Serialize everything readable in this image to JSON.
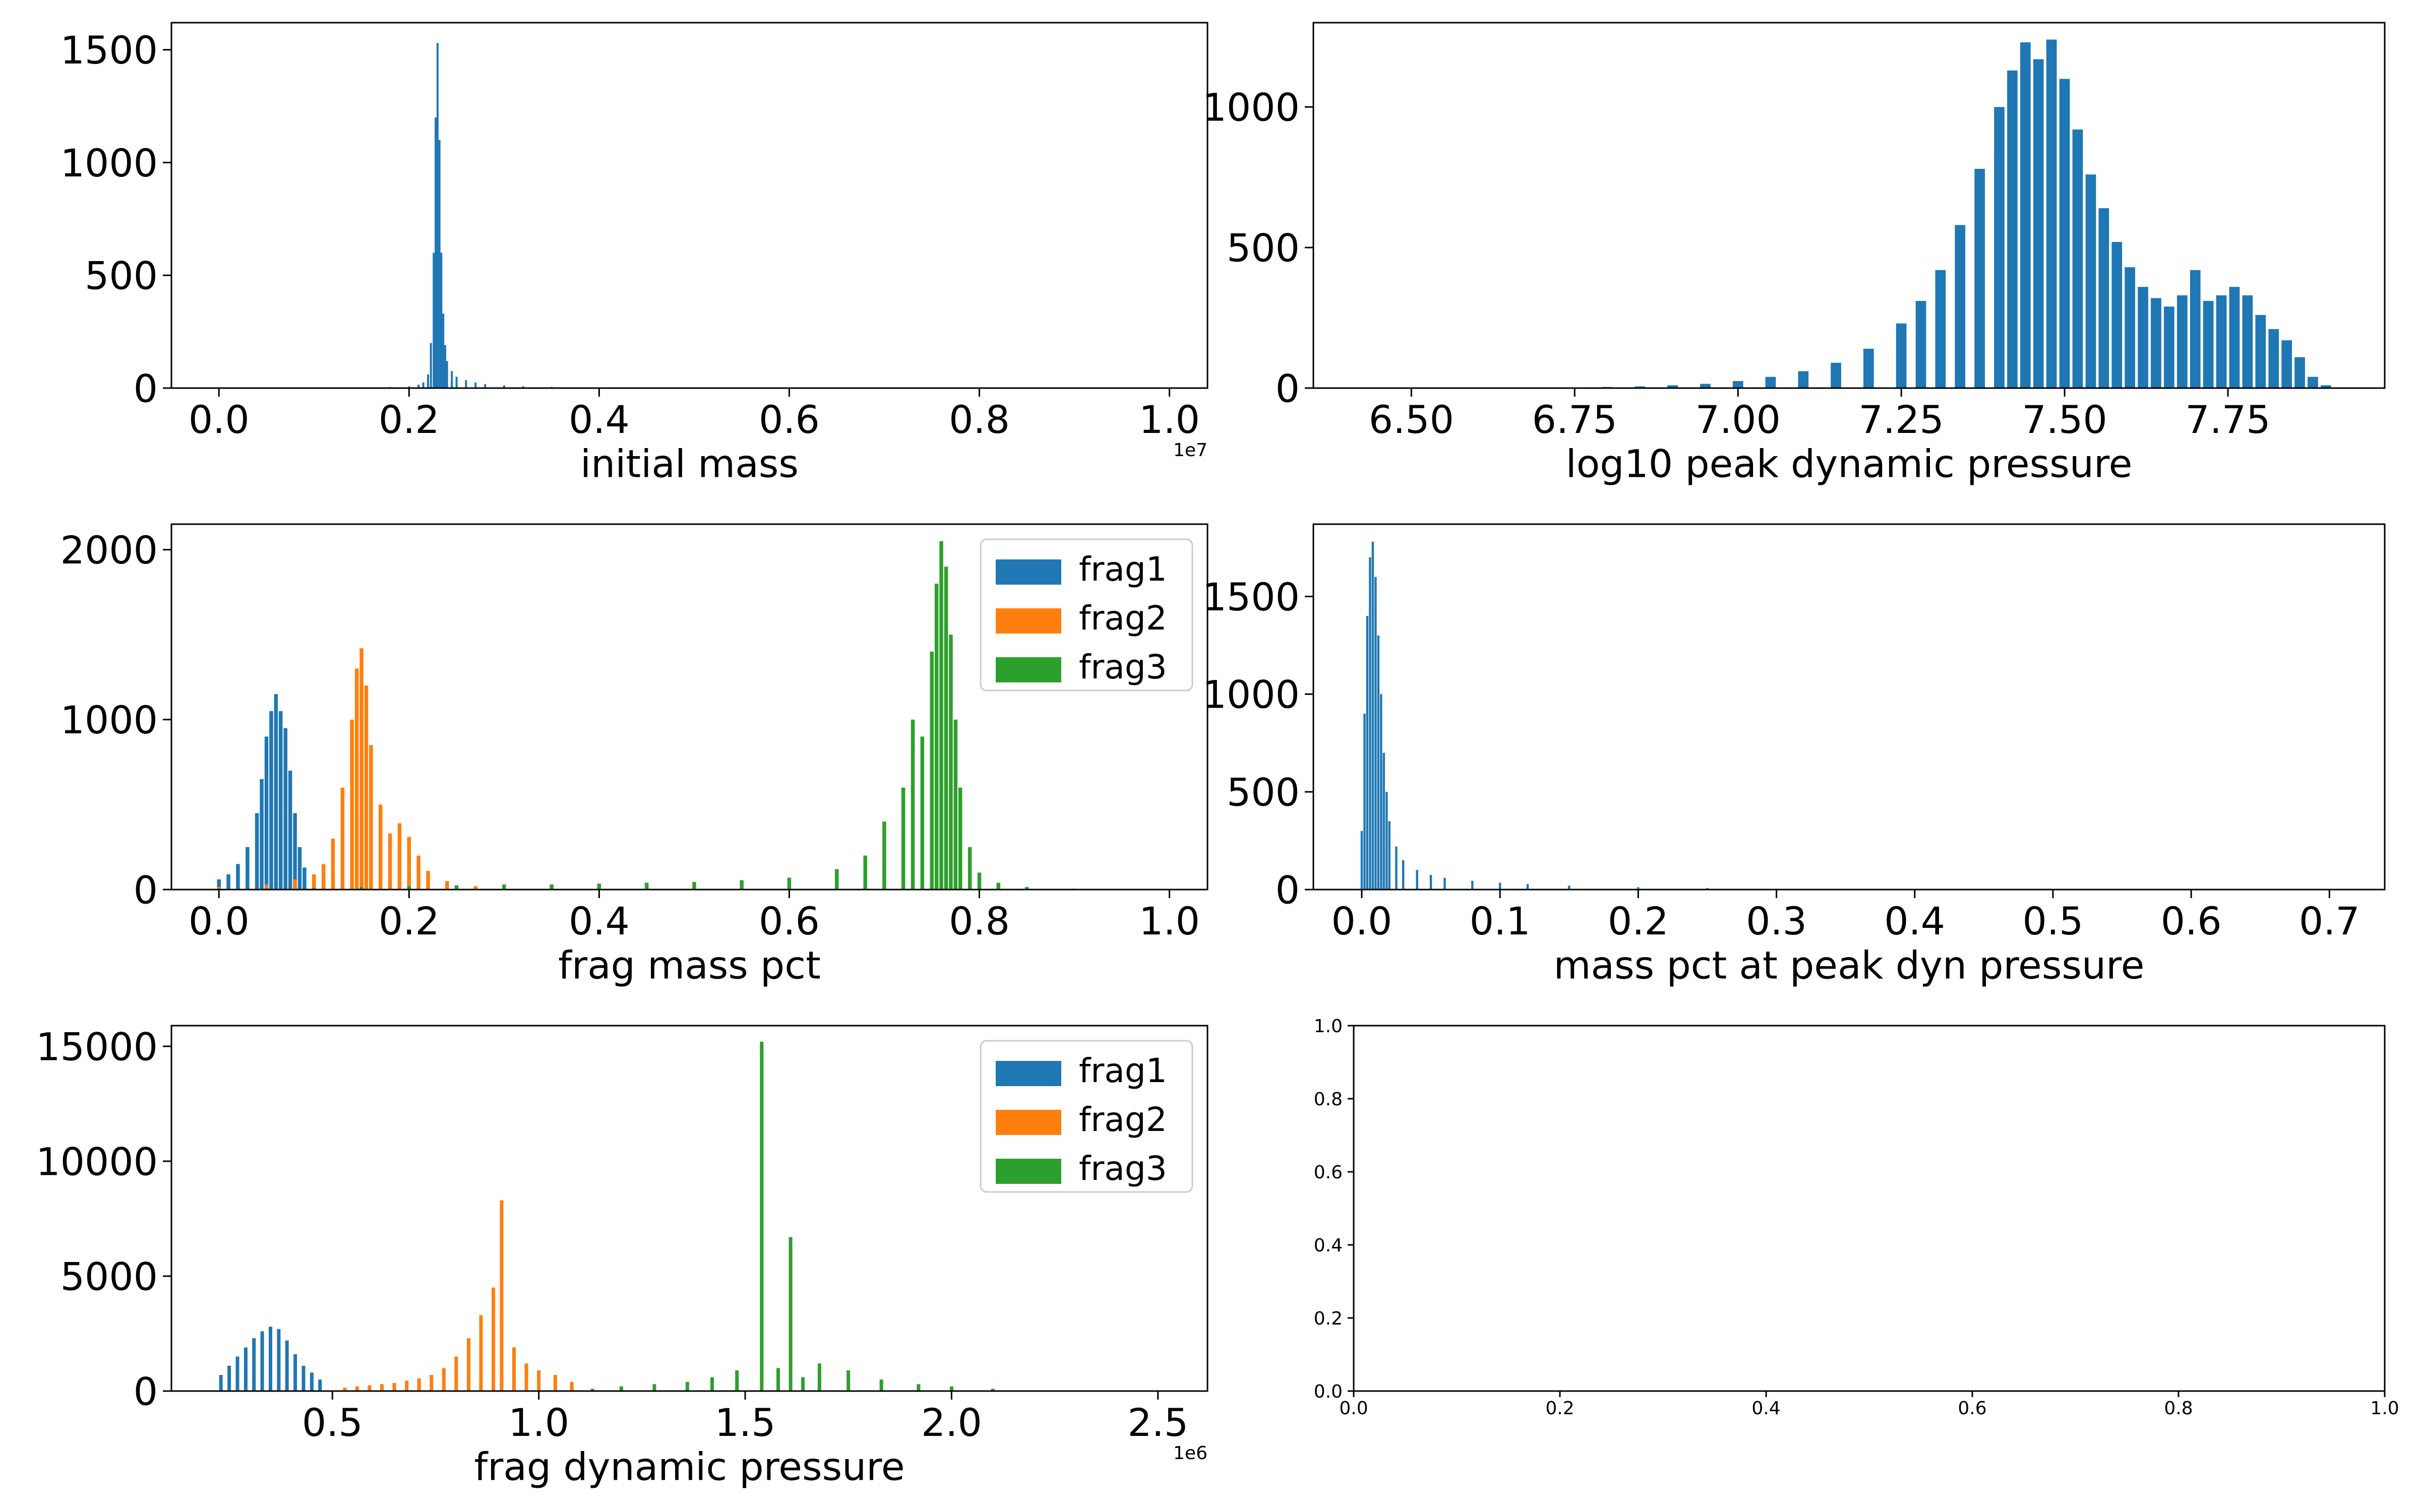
{
  "colors": {
    "frag1": "#1f77b4",
    "frag2": "#ff7f0e",
    "frag3": "#2ca02c",
    "axis": "#000000",
    "background": "#ffffff"
  },
  "chart_data": [
    {
      "id": "initial_mass",
      "type": "bar",
      "xlabel": "initial mass",
      "ylabel": "",
      "offset_label": "1e7",
      "xlim": [
        -0.05,
        1.04
      ],
      "ylim": [
        0,
        1620
      ],
      "xticks": [
        0.0,
        0.2,
        0.4,
        0.6,
        0.8,
        1.0
      ],
      "xtick_labels": [
        "0.0",
        "0.2",
        "0.4",
        "0.6",
        "0.8",
        "1.0"
      ],
      "yticks": [
        0,
        500,
        1000,
        1500
      ],
      "ytick_labels": [
        "0",
        "500",
        "1000",
        "1500"
      ],
      "grid": false,
      "legend": null,
      "series": [
        {
          "color_key": "frag1",
          "x": [
            0.05,
            0.1,
            0.15,
            0.18,
            0.2,
            0.21,
            0.215,
            0.22,
            0.223,
            0.226,
            0.228,
            0.23,
            0.232,
            0.234,
            0.236,
            0.238,
            0.24,
            0.245,
            0.25,
            0.26,
            0.27,
            0.28,
            0.3,
            0.32,
            0.35,
            0.4,
            0.45,
            0.5
          ],
          "values": [
            1,
            2,
            3,
            5,
            8,
            15,
            25,
            60,
            200,
            600,
            1200,
            1530,
            1100,
            600,
            330,
            190,
            120,
            75,
            50,
            35,
            25,
            18,
            12,
            8,
            5,
            3,
            2,
            1
          ]
        }
      ]
    },
    {
      "id": "log10_peak_dynamic_pressure",
      "type": "bar",
      "xlabel": "log10 peak dynamic pressure",
      "ylabel": "",
      "offset_label": "",
      "xlim": [
        6.35,
        7.99
      ],
      "ylim": [
        0,
        1300
      ],
      "xticks": [
        6.5,
        6.75,
        7.0,
        7.25,
        7.5,
        7.75
      ],
      "xtick_labels": [
        "6.50",
        "6.75",
        "7.00",
        "7.25",
        "7.50",
        "7.75"
      ],
      "yticks": [
        0,
        500,
        1000
      ],
      "ytick_labels": [
        "0",
        "500",
        "1000"
      ],
      "grid": false,
      "legend": null,
      "series": [
        {
          "color_key": "frag1",
          "x": [
            6.75,
            6.8,
            6.85,
            6.9,
            6.95,
            7.0,
            7.05,
            7.1,
            7.15,
            7.2,
            7.25,
            7.28,
            7.31,
            7.34,
            7.37,
            7.4,
            7.42,
            7.44,
            7.46,
            7.48,
            7.5,
            7.52,
            7.54,
            7.56,
            7.58,
            7.6,
            7.62,
            7.64,
            7.66,
            7.68,
            7.7,
            7.72,
            7.74,
            7.76,
            7.78,
            7.8,
            7.82,
            7.84,
            7.86,
            7.88,
            7.9
          ],
          "values": [
            2,
            4,
            6,
            10,
            15,
            25,
            40,
            60,
            90,
            140,
            230,
            310,
            420,
            580,
            780,
            1000,
            1130,
            1230,
            1170,
            1240,
            1100,
            920,
            760,
            640,
            520,
            430,
            360,
            320,
            290,
            330,
            420,
            310,
            330,
            360,
            330,
            260,
            210,
            170,
            110,
            40,
            10
          ]
        }
      ]
    },
    {
      "id": "frag_mass_pct",
      "type": "bar",
      "xlabel": "frag mass pct",
      "ylabel": "",
      "offset_label": "",
      "xlim": [
        -0.05,
        1.04
      ],
      "ylim": [
        0,
        2150
      ],
      "xticks": [
        0.0,
        0.2,
        0.4,
        0.6,
        0.8,
        1.0
      ],
      "xtick_labels": [
        "0.0",
        "0.2",
        "0.4",
        "0.6",
        "0.8",
        "1.0"
      ],
      "yticks": [
        0,
        1000,
        2000
      ],
      "ytick_labels": [
        "0",
        "1000",
        "2000"
      ],
      "grid": false,
      "legend": {
        "placement": "top-right",
        "entries": [
          "frag1",
          "frag2",
          "frag3"
        ]
      },
      "series": [
        {
          "name": "frag1",
          "color_key": "frag1",
          "x": [
            0.0,
            0.01,
            0.02,
            0.03,
            0.04,
            0.045,
            0.05,
            0.055,
            0.06,
            0.065,
            0.07,
            0.075,
            0.08,
            0.085,
            0.09,
            0.1,
            0.11,
            0.12
          ],
          "values": [
            60,
            90,
            150,
            250,
            450,
            650,
            900,
            1050,
            1150,
            1050,
            950,
            700,
            450,
            250,
            130,
            60,
            25,
            10
          ]
        },
        {
          "name": "frag2",
          "color_key": "frag2",
          "x": [
            0.0,
            0.05,
            0.08,
            0.1,
            0.11,
            0.12,
            0.13,
            0.14,
            0.145,
            0.15,
            0.155,
            0.16,
            0.17,
            0.18,
            0.19,
            0.2,
            0.21,
            0.22,
            0.24,
            0.27,
            0.3
          ],
          "values": [
            15,
            30,
            60,
            90,
            150,
            300,
            600,
            1000,
            1300,
            1420,
            1200,
            850,
            500,
            330,
            390,
            310,
            200,
            110,
            50,
            20,
            8
          ]
        },
        {
          "name": "frag3",
          "color_key": "frag3",
          "x": [
            0.0,
            0.05,
            0.1,
            0.15,
            0.2,
            0.25,
            0.3,
            0.35,
            0.4,
            0.45,
            0.5,
            0.55,
            0.6,
            0.65,
            0.68,
            0.7,
            0.72,
            0.73,
            0.74,
            0.75,
            0.755,
            0.76,
            0.765,
            0.77,
            0.775,
            0.78,
            0.79,
            0.8,
            0.82,
            0.85,
            0.9
          ],
          "values": [
            5,
            8,
            10,
            15,
            20,
            25,
            30,
            30,
            35,
            40,
            45,
            55,
            70,
            120,
            200,
            400,
            600,
            1000,
            900,
            1400,
            1800,
            2050,
            1900,
            1500,
            1000,
            600,
            250,
            100,
            40,
            15,
            5
          ]
        }
      ]
    },
    {
      "id": "mass_pct_at_peak_dyn_pressure",
      "type": "bar",
      "xlabel": "mass pct at peak dyn pressure",
      "ylabel": "",
      "offset_label": "",
      "xlim": [
        -0.035,
        0.74
      ],
      "ylim": [
        0,
        1870
      ],
      "xticks": [
        0.0,
        0.1,
        0.2,
        0.3,
        0.4,
        0.5,
        0.6,
        0.7
      ],
      "xtick_labels": [
        "0.0",
        "0.1",
        "0.2",
        "0.3",
        "0.4",
        "0.5",
        "0.6",
        "0.7"
      ],
      "yticks": [
        0,
        500,
        1000,
        1500
      ],
      "ytick_labels": [
        "0",
        "500",
        "1000",
        "1500"
      ],
      "grid": false,
      "legend": null,
      "series": [
        {
          "color_key": "frag1",
          "x": [
            0.0,
            0.002,
            0.004,
            0.006,
            0.008,
            0.01,
            0.012,
            0.014,
            0.016,
            0.018,
            0.02,
            0.025,
            0.03,
            0.04,
            0.05,
            0.06,
            0.08,
            0.1,
            0.12,
            0.15,
            0.2,
            0.25,
            0.3,
            0.35,
            0.4,
            0.5,
            0.6,
            0.7
          ],
          "values": [
            300,
            900,
            1400,
            1700,
            1780,
            1600,
            1300,
            1000,
            700,
            500,
            350,
            220,
            150,
            100,
            75,
            60,
            45,
            35,
            28,
            20,
            12,
            8,
            5,
            3,
            2,
            1,
            1,
            1
          ]
        }
      ]
    },
    {
      "id": "frag_dynamic_pressure",
      "type": "bar",
      "xlabel": "frag dynamic pressure",
      "ylabel": "",
      "offset_label": "1e6",
      "xlim": [
        0.11,
        2.62
      ],
      "ylim": [
        0,
        15900
      ],
      "xticks": [
        0.5,
        1.0,
        1.5,
        2.0,
        2.5
      ],
      "xtick_labels": [
        "0.5",
        "1.0",
        "1.5",
        "2.0",
        "2.5"
      ],
      "yticks": [
        0,
        5000,
        10000,
        15000
      ],
      "ytick_labels": [
        "0",
        "5000",
        "10000",
        "15000"
      ],
      "grid": false,
      "legend": {
        "placement": "top-right",
        "entries": [
          "frag1",
          "frag2",
          "frag3"
        ]
      },
      "series": [
        {
          "name": "frag1",
          "color_key": "frag1",
          "x": [
            0.23,
            0.25,
            0.27,
            0.29,
            0.31,
            0.33,
            0.35,
            0.37,
            0.39,
            0.41,
            0.43,
            0.45,
            0.47
          ],
          "values": [
            700,
            1100,
            1500,
            1900,
            2300,
            2600,
            2800,
            2700,
            2200,
            1600,
            1100,
            800,
            500
          ]
        },
        {
          "name": "frag2",
          "color_key": "frag2",
          "x": [
            0.53,
            0.56,
            0.59,
            0.62,
            0.65,
            0.68,
            0.71,
            0.74,
            0.77,
            0.8,
            0.83,
            0.86,
            0.89,
            0.91,
            0.94,
            0.97,
            1.0,
            1.04,
            1.08
          ],
          "values": [
            150,
            200,
            250,
            300,
            350,
            450,
            550,
            700,
            1000,
            1500,
            2300,
            3300,
            4500,
            8300,
            1900,
            1200,
            900,
            700,
            400
          ]
        },
        {
          "name": "frag3",
          "color_key": "frag3",
          "x": [
            1.13,
            1.2,
            1.28,
            1.36,
            1.42,
            1.48,
            1.54,
            1.58,
            1.61,
            1.64,
            1.68,
            1.75,
            1.83,
            1.92,
            2.0,
            2.1
          ],
          "values": [
            100,
            200,
            300,
            400,
            600,
            900,
            15200,
            1000,
            6700,
            600,
            1200,
            900,
            500,
            300,
            200,
            100
          ]
        }
      ]
    },
    {
      "id": "empty_axes",
      "type": "scatter",
      "xlabel": "",
      "ylabel": "",
      "offset_label": "",
      "xlim": [
        0,
        1
      ],
      "ylim": [
        0,
        1
      ],
      "xticks": [
        0.0,
        0.2,
        0.4,
        0.6,
        0.8,
        1.0
      ],
      "xtick_labels": [
        "0.0",
        "0.2",
        "0.4",
        "0.6",
        "0.8",
        "1.0"
      ],
      "yticks": [
        0.0,
        0.2,
        0.4,
        0.6,
        0.8,
        1.0
      ],
      "ytick_labels": [
        "0.0",
        "0.2",
        "0.4",
        "0.6",
        "0.8",
        "1.0"
      ],
      "grid": false,
      "legend": null,
      "series": []
    }
  ]
}
